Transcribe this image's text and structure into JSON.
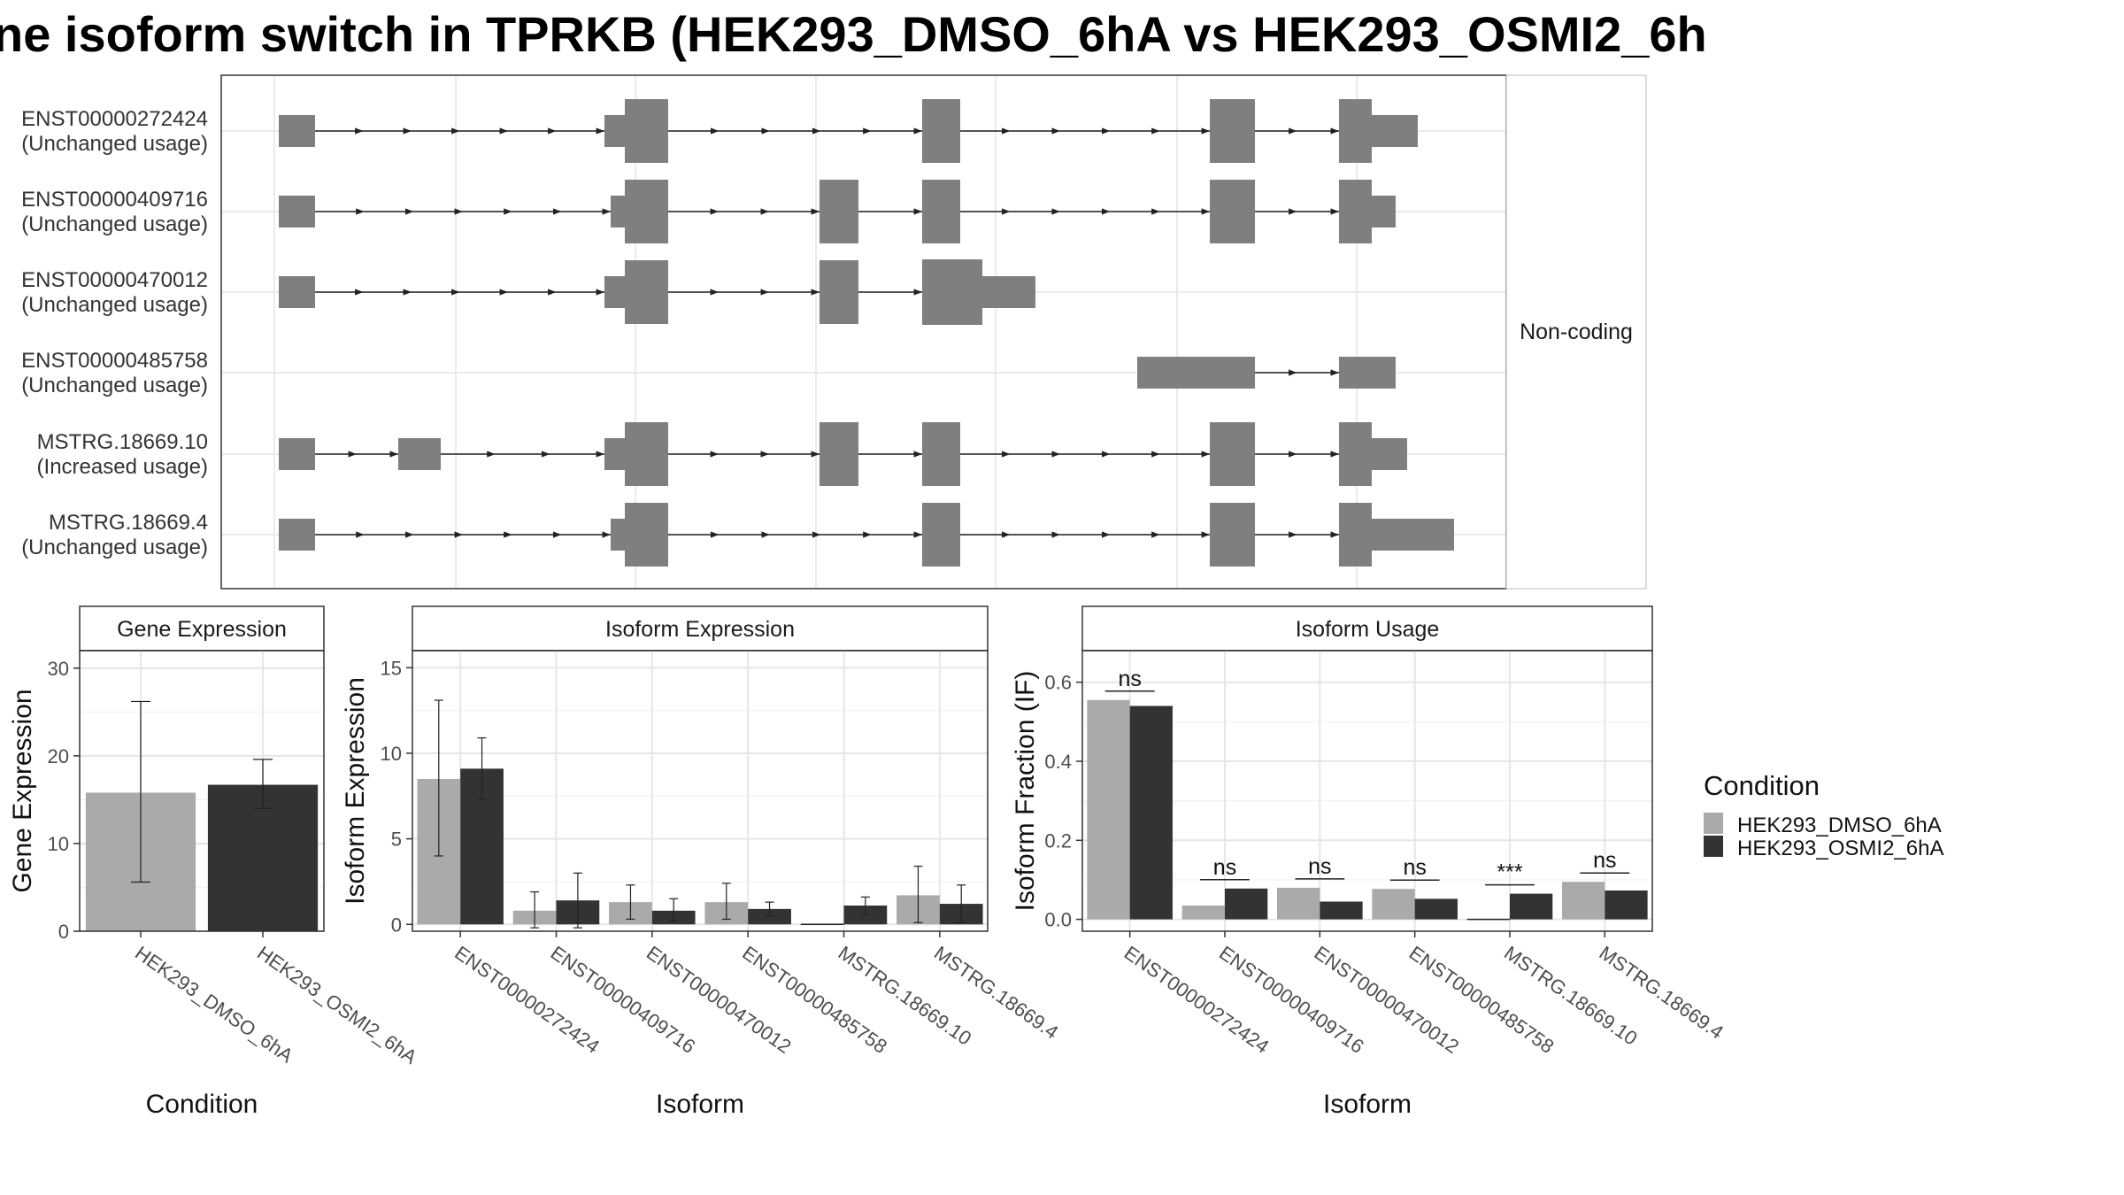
{
  "title": "ne isoform switch in TPRKB (HEK293_DMSO_6hA vs HEK293_OSMI2_6h",
  "transcript_panel": {
    "strip_label": "Non-coding",
    "transcripts": [
      {
        "id": "ENST00000272424",
        "usage": "(Unchanged usage)"
      },
      {
        "id": "ENST00000409716",
        "usage": "(Unchanged usage)"
      },
      {
        "id": "ENST00000470012",
        "usage": "(Unchanged usage)"
      },
      {
        "id": "ENST00000485758",
        "usage": "(Unchanged usage)"
      },
      {
        "id": "MSTRG.18669.10",
        "usage": "(Increased usage)"
      },
      {
        "id": "MSTRG.18669.4",
        "usage": "(Unchanged usage)"
      }
    ]
  },
  "legend": {
    "title": "Condition",
    "items": [
      {
        "label": "HEK293_DMSO_6hA",
        "color": "#aaaaaa"
      },
      {
        "label": "HEK293_OSMI2_6hA",
        "color": "#333333"
      }
    ]
  },
  "chart_data": [
    {
      "type": "bar",
      "title": "Gene Expression",
      "xlabel": "Condition",
      "ylabel": "Gene Expression",
      "ylim": [
        0,
        32
      ],
      "yticks": [
        0,
        10,
        20,
        30
      ],
      "categories": [
        "HEK293_DMSO_6hA",
        "HEK293_OSMI2_6hA"
      ],
      "values": [
        15.8,
        16.7
      ],
      "errors": [
        [
          5.6,
          26.2
        ],
        [
          14.0,
          19.6
        ]
      ],
      "colors": [
        "#aaaaaa",
        "#333333"
      ]
    },
    {
      "type": "bar",
      "title": "Isoform Expression",
      "xlabel": "Isoform",
      "ylabel": "Isoform Expression",
      "ylim": [
        -0.4,
        16
      ],
      "yticks": [
        0,
        5,
        10,
        15
      ],
      "categories": [
        "ENST00000272424",
        "ENST00000409716",
        "ENST00000470012",
        "ENST00000485758",
        "MSTRG.18669.10",
        "MSTRG.18669.4"
      ],
      "series": [
        {
          "name": "HEK293_DMSO_6hA",
          "values": [
            8.5,
            0.8,
            1.3,
            1.3,
            0.0,
            1.7
          ],
          "errors": [
            [
              4.0,
              13.1
            ],
            [
              -0.2,
              1.9
            ],
            [
              0.3,
              2.3
            ],
            [
              0.3,
              2.4
            ],
            [
              0.0,
              0.0
            ],
            [
              0.1,
              3.4
            ]
          ]
        },
        {
          "name": "HEK293_OSMI2_6hA",
          "values": [
            9.1,
            1.4,
            0.8,
            0.9,
            1.1,
            1.2
          ],
          "errors": [
            [
              7.3,
              10.9
            ],
            [
              -0.2,
              3.0
            ],
            [
              0.2,
              1.5
            ],
            [
              0.5,
              1.3
            ],
            [
              0.6,
              1.6
            ],
            [
              0.1,
              2.3
            ]
          ]
        }
      ]
    },
    {
      "type": "bar",
      "title": "Isoform Usage",
      "xlabel": "Isoform",
      "ylabel": "Isoform Fraction (IF)",
      "ylim": [
        -0.03,
        0.68
      ],
      "yticks": [
        "0.0",
        "0.2",
        "0.4",
        "0.6"
      ],
      "categories": [
        "ENST00000272424",
        "ENST00000409716",
        "ENST00000470012",
        "ENST00000485758",
        "MSTRG.18669.10",
        "MSTRG.18669.4"
      ],
      "series": [
        {
          "name": "HEK293_DMSO_6hA",
          "values": [
            0.555,
            0.035,
            0.08,
            0.077,
            0.0,
            0.095
          ]
        },
        {
          "name": "HEK293_OSMI2_6hA",
          "values": [
            0.54,
            0.078,
            0.045,
            0.052,
            0.065,
            0.073
          ]
        }
      ],
      "significance": [
        "ns",
        "ns",
        "ns",
        "ns",
        "***",
        "ns"
      ]
    }
  ]
}
